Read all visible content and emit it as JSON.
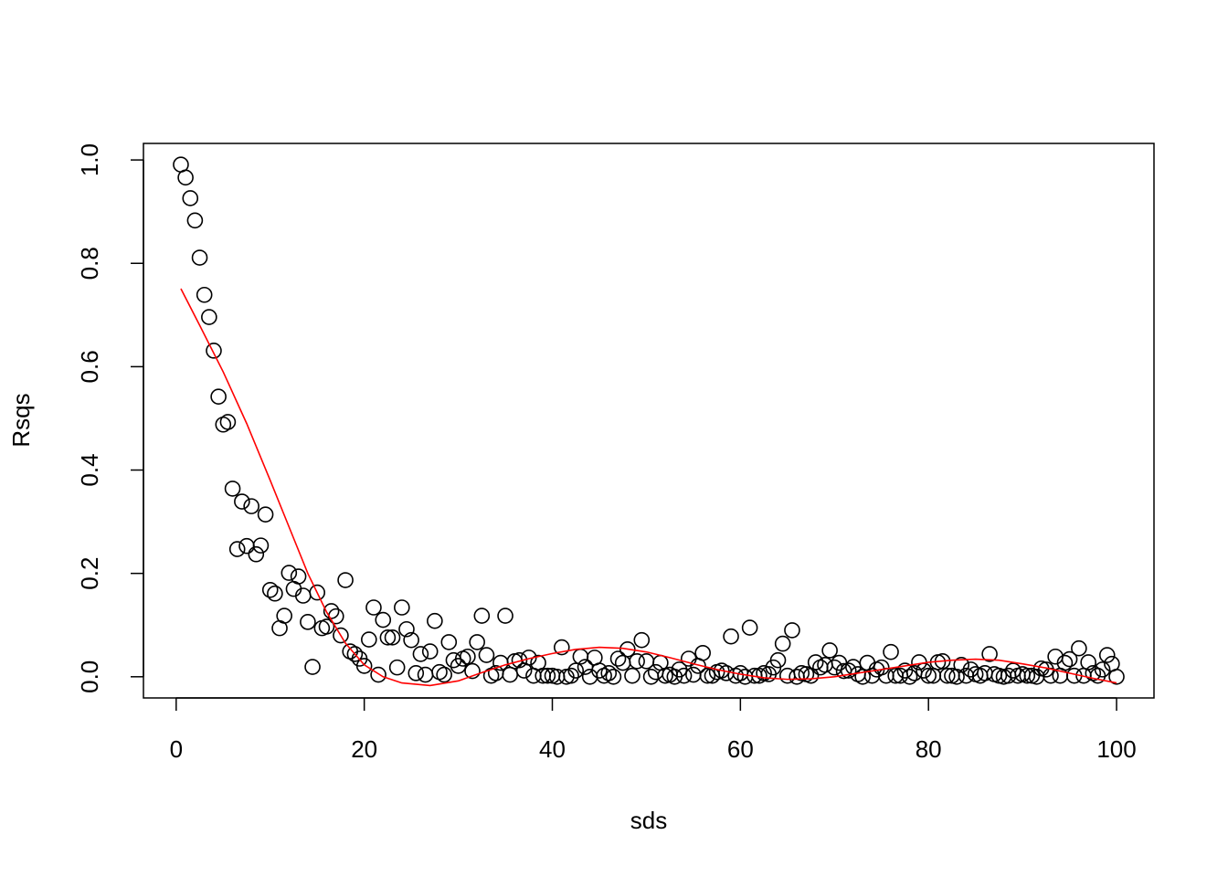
{
  "chart_data": {
    "type": "scatter",
    "x_label": "sds",
    "y_label": "Rsqs",
    "xlim": [
      -3.48,
      103.98
    ],
    "ylim": [
      -0.041,
      1.032
    ],
    "xticks": [
      0,
      20,
      40,
      60,
      80,
      100
    ],
    "yticks": [
      {
        "value": 0,
        "label": "0.0"
      },
      0.2,
      0.4,
      0.6,
      0.8,
      {
        "value": 1,
        "label": "1.0"
      }
    ],
    "series": [
      {
        "type": "scatter",
        "color": "#000000",
        "x": [
          0.5,
          1,
          1.5,
          2,
          2.5,
          3,
          3.5,
          4,
          4.5,
          5,
          5.5,
          6,
          6.5,
          7,
          7.5,
          8,
          8.5,
          9,
          9.5,
          10,
          10.5,
          11,
          11.5,
          12,
          12.5,
          13,
          13.5,
          14,
          14.5,
          15,
          15.5,
          16,
          16.5,
          17,
          17.5,
          18,
          18.5,
          19,
          19.5,
          20,
          20.5,
          21,
          21.5,
          22,
          22.5,
          23,
          23.5,
          24,
          24.5,
          25,
          25.5,
          26,
          26.5,
          27,
          27.5,
          28,
          28.5,
          29,
          29.5,
          30,
          30.5,
          31,
          31.5,
          32,
          32.5,
          33,
          33.5,
          34,
          34.5,
          35,
          35.5,
          36,
          36.5,
          37,
          37.5,
          38,
          38.5,
          39,
          39.5,
          40,
          40.5,
          41,
          41.5,
          42,
          42.5,
          43,
          43.5,
          44,
          44.5,
          45,
          45.5,
          46,
          46.5,
          47,
          47.5,
          48,
          48.5,
          49,
          49.5,
          50,
          50.5,
          51,
          51.5,
          52,
          52.5,
          53,
          53.5,
          54,
          54.5,
          55,
          55.5,
          56,
          56.5,
          57,
          57.5,
          58,
          58.5,
          59,
          59.5,
          60,
          60.5,
          61,
          61.5,
          62,
          62.5,
          63,
          63.5,
          64,
          64.5,
          65,
          65.5,
          66,
          66.5,
          67,
          67.5,
          68,
          68.5,
          69,
          69.5,
          70,
          70.5,
          71,
          71.5,
          72,
          72.5,
          73,
          73.5,
          74,
          74.5,
          75,
          75.5,
          76,
          76.5,
          77,
          77.5,
          78,
          78.5,
          79,
          79.5,
          80,
          80.5,
          81,
          81.5,
          82,
          82.5,
          83,
          83.5,
          84,
          84.5,
          85,
          85.5,
          86,
          86.5,
          87,
          87.5,
          88,
          88.5,
          89,
          89.5,
          90,
          90.5,
          91,
          91.5,
          92,
          92.5,
          93,
          93.5,
          94,
          94.5,
          95,
          95.5,
          96,
          96.5,
          97,
          97.5,
          98,
          98.5,
          99,
          99.5,
          100
        ],
        "values": [
          0.991,
          0.966,
          0.926,
          0.883,
          0.811,
          0.739,
          0.696,
          0.631,
          0.542,
          0.488,
          0.493,
          0.364,
          0.247,
          0.339,
          0.253,
          0.33,
          0.237,
          0.254,
          0.314,
          0.168,
          0.161,
          0.094,
          0.118,
          0.201,
          0.17,
          0.194,
          0.157,
          0.106,
          0.019,
          0.163,
          0.094,
          0.097,
          0.127,
          0.117,
          0.08,
          0.187,
          0.049,
          0.044,
          0.035,
          0.021,
          0.072,
          0.134,
          0.004,
          0.11,
          0.076,
          0.076,
          0.018,
          0.134,
          0.092,
          0.071,
          0.007,
          0.044,
          0.004,
          0.049,
          0.108,
          0.009,
          0.004,
          0.067,
          0.032,
          0.021,
          0.035,
          0.039,
          0.011,
          0.067,
          0.118,
          0.042,
          0.002,
          0.007,
          0.027,
          0.118,
          0.004,
          0.03,
          0.032,
          0.012,
          0.037,
          0.002,
          0.027,
          0.002,
          0.002,
          0.002,
          0.0,
          0.057,
          0.0,
          0.002,
          0.012,
          0.039,
          0.019,
          0.0,
          0.037,
          0.012,
          0.002,
          0.007,
          0.0,
          0.035,
          0.027,
          0.053,
          0.002,
          0.03,
          0.071,
          0.03,
          0.0,
          0.009,
          0.027,
          0.002,
          0.004,
          0.0,
          0.014,
          0.002,
          0.035,
          0.004,
          0.021,
          0.046,
          0.002,
          0.002,
          0.009,
          0.012,
          0.007,
          0.078,
          0.002,
          0.007,
          0.0,
          0.095,
          0.002,
          0.002,
          0.007,
          0.005,
          0.018,
          0.032,
          0.064,
          0.002,
          0.09,
          0.0,
          0.007,
          0.005,
          0.002,
          0.028,
          0.018,
          0.023,
          0.051,
          0.018,
          0.027,
          0.011,
          0.012,
          0.019,
          0.005,
          0.0,
          0.027,
          0.002,
          0.014,
          0.018,
          0.002,
          0.048,
          0.002,
          0.002,
          0.012,
          0.0,
          0.007,
          0.028,
          0.012,
          0.002,
          0.002,
          0.028,
          0.03,
          0.002,
          0.002,
          0.0,
          0.023,
          0.002,
          0.014,
          0.005,
          0.002,
          0.007,
          0.044,
          0.005,
          0.002,
          0.0,
          0.002,
          0.012,
          0.002,
          0.005,
          0.002,
          0.002,
          0.0,
          0.016,
          0.014,
          0.002,
          0.039,
          0.002,
          0.027,
          0.034,
          0.002,
          0.055,
          0.002,
          0.028,
          0.007,
          0.002,
          0.014,
          0.042,
          0.025,
          0.0
        ]
      },
      {
        "type": "line",
        "color": "#ff0000",
        "x": [
          0.5,
          2.5,
          5,
          7.5,
          10,
          12,
          14,
          16,
          18,
          20,
          22,
          24,
          27,
          30,
          32.5,
          35,
          37.5,
          40,
          42.5,
          45,
          47.5,
          50,
          52.5,
          55,
          57.5,
          60,
          62.5,
          65,
          67.5,
          70,
          72.5,
          75,
          77.5,
          80,
          82.5,
          85,
          87.5,
          90,
          92.5,
          95,
          97.5,
          100
        ],
        "values": [
          0.751,
          0.68,
          0.59,
          0.49,
          0.38,
          0.29,
          0.2,
          0.125,
          0.065,
          0.023,
          0.0,
          -0.012,
          -0.017,
          -0.008,
          0.008,
          0.023,
          0.035,
          0.045,
          0.053,
          0.057,
          0.055,
          0.048,
          0.037,
          0.025,
          0.014,
          0.005,
          -0.002,
          -0.005,
          -0.004,
          0.0,
          0.007,
          0.014,
          0.021,
          0.028,
          0.032,
          0.034,
          0.032,
          0.025,
          0.017,
          0.007,
          -0.003,
          -0.012
        ]
      }
    ]
  }
}
